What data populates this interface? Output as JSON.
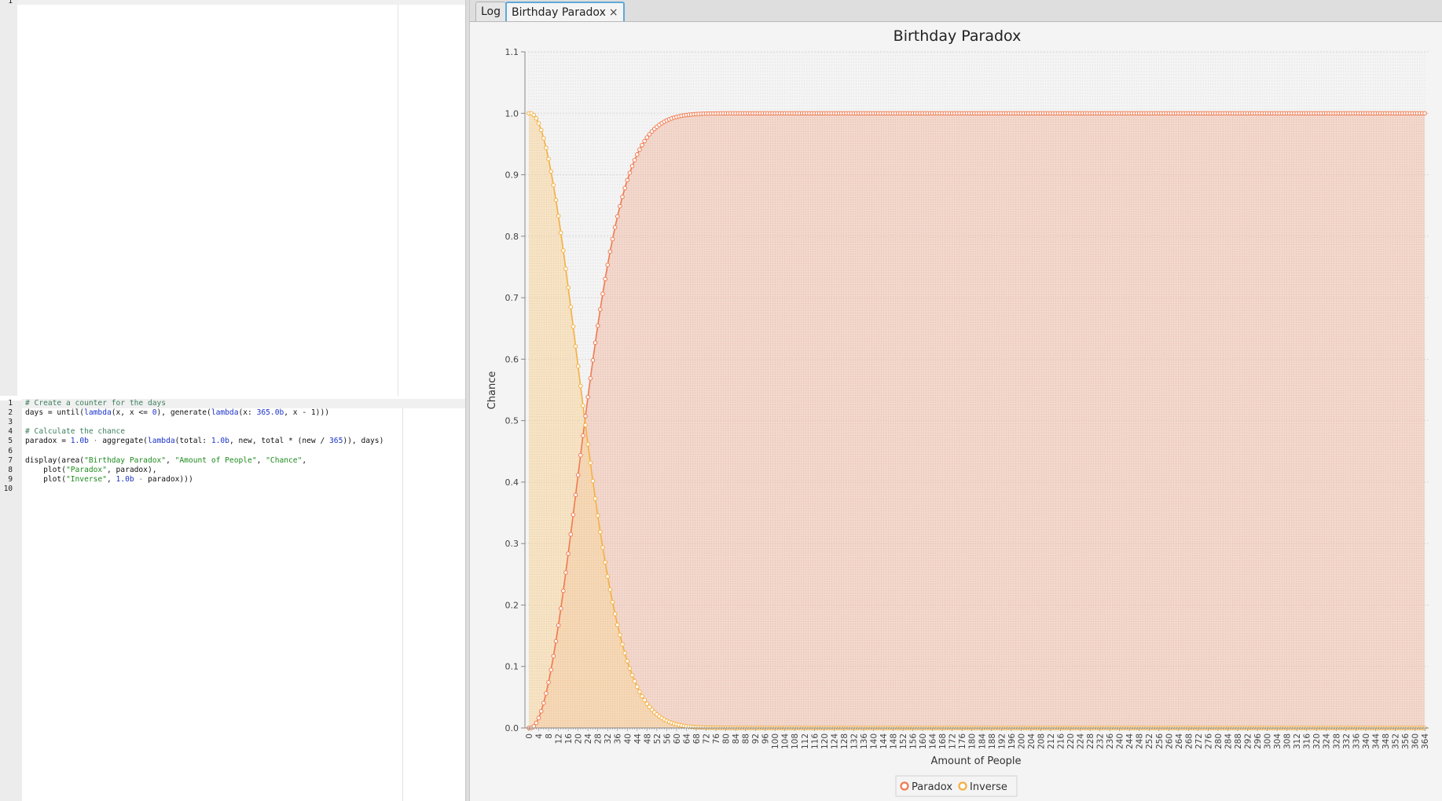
{
  "editor_top": {
    "line_numbers": [
      "1"
    ]
  },
  "editor_bottom": {
    "line_numbers": [
      "1",
      "2",
      "3",
      "4",
      "5",
      "6",
      "7",
      "8",
      "9",
      "10"
    ],
    "lines": [
      [
        [
          "cm",
          "# Create a counter for the days"
        ]
      ],
      [
        [
          "",
          "days = until("
        ],
        [
          "kw",
          "lambda"
        ],
        [
          "",
          "(x, x <= "
        ],
        [
          "nm",
          "0"
        ],
        [
          "",
          "), generate("
        ],
        [
          "kw",
          "lambda"
        ],
        [
          "",
          "(x: "
        ],
        [
          "nm",
          "365.0b"
        ],
        [
          "",
          ", x - 1)))"
        ]
      ],
      [],
      [
        [
          "cm",
          "# Calculate the chance"
        ]
      ],
      [
        [
          "",
          "paradox = "
        ],
        [
          "nm",
          "1.0b"
        ],
        [
          "op",
          " · "
        ],
        [
          "",
          "aggregate("
        ],
        [
          "kw",
          "lambda"
        ],
        [
          "",
          "(total: "
        ],
        [
          "nm",
          "1.0b"
        ],
        [
          "",
          ", new, total * (new / "
        ],
        [
          "nm",
          "365"
        ],
        [
          "",
          ")), days)"
        ]
      ],
      [],
      [
        [
          "",
          "display(area("
        ],
        [
          "st",
          "\"Birthday Paradox\""
        ],
        [
          "",
          ", "
        ],
        [
          "st",
          "\"Amount of People\""
        ],
        [
          "",
          ", "
        ],
        [
          "st",
          "\"Chance\""
        ],
        [
          "",
          ","
        ]
      ],
      [
        [
          "",
          "    plot("
        ],
        [
          "st",
          "\"Paradox\""
        ],
        [
          "",
          ", paradox),"
        ]
      ],
      [
        [
          "",
          "    plot("
        ],
        [
          "st",
          "\"Inverse\""
        ],
        [
          "",
          ", "
        ],
        [
          "nm",
          "1.0b"
        ],
        [
          "op",
          " - "
        ],
        [
          "",
          "paradox)))"
        ]
      ],
      []
    ]
  },
  "tabs": [
    {
      "label": "Log",
      "active": false
    },
    {
      "label": "Birthday Paradox",
      "active": true,
      "close_icon": "×"
    }
  ],
  "chart_data": {
    "type": "area",
    "title": "Birthday Paradox",
    "xlabel": "Amount of People",
    "ylabel": "Chance",
    "xlim": [
      0,
      364
    ],
    "ylim": [
      0.0,
      1.1
    ],
    "x_tick_step": 4,
    "y_ticks": [
      "0.0",
      "0.1",
      "0.2",
      "0.3",
      "0.4",
      "0.5",
      "0.6",
      "0.7",
      "0.8",
      "0.9",
      "1.0",
      "1.1"
    ],
    "series": [
      {
        "name": "Paradox",
        "color": "#f07a50",
        "formula": "1 - prod_{k=0..n-1}(365-k)/365"
      },
      {
        "name": "Inverse",
        "color": "#f5b041",
        "formula": "prod_{k=0..n-1}(365-k)/365"
      }
    ],
    "legend": "bottom-center",
    "grid": true
  }
}
